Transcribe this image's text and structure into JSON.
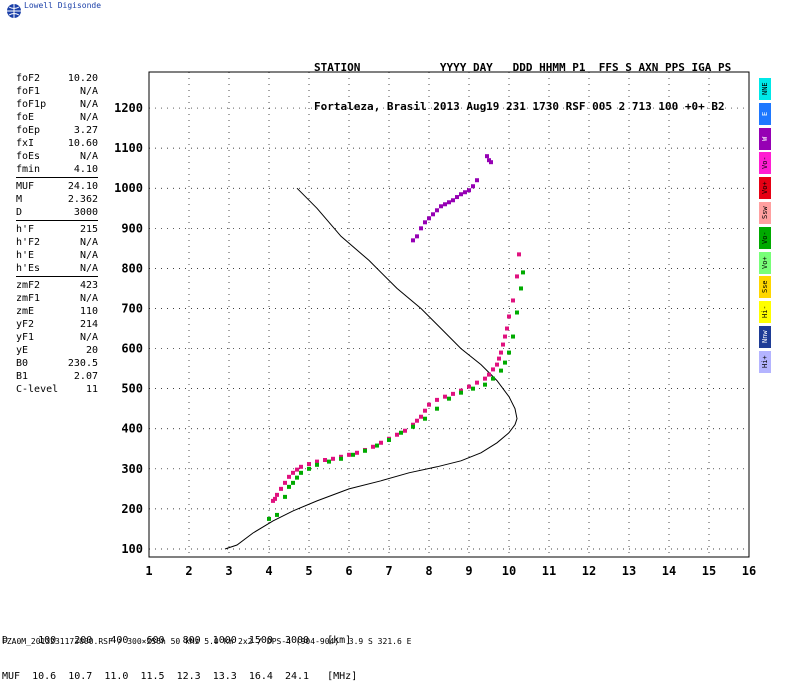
{
  "logo_text": "Lowell Digisonde",
  "header": {
    "line1": "STATION            YYYY DAY   DDD HHMM P1  FFS S AXN PPS IGA PS",
    "line2": "Fortaleza, Brasil 2013 Aug19 231 1730 RSF 005 2 713 100 +0+ B2"
  },
  "params_groups": [
    [
      [
        "foF2",
        "10.20"
      ],
      [
        "foF1",
        "N/A"
      ],
      [
        "foF1p",
        "N/A"
      ],
      [
        "foE",
        "N/A"
      ],
      [
        "foEp",
        "3.27"
      ],
      [
        "fxI",
        "10.60"
      ],
      [
        "foEs",
        "N/A"
      ],
      [
        "fmin",
        "4.10"
      ]
    ],
    [
      [
        "MUF",
        "24.10"
      ],
      [
        "M",
        "2.362"
      ],
      [
        "D",
        "3000"
      ]
    ],
    [
      [
        "h'F",
        "215"
      ],
      [
        "h'F2",
        "N/A"
      ],
      [
        "h'E",
        "N/A"
      ],
      [
        "h'Es",
        "N/A"
      ]
    ],
    [
      [
        "zmF2",
        "423"
      ],
      [
        "zmF1",
        "N/A"
      ],
      [
        "zmE",
        "110"
      ],
      [
        "yF2",
        "214"
      ],
      [
        "yF1",
        "N/A"
      ],
      [
        "yE",
        "20"
      ],
      [
        "B0",
        "230.5"
      ],
      [
        "B1",
        "2.07"
      ],
      [
        "C-level",
        "11"
      ]
    ]
  ],
  "legend": [
    {
      "label": "NNE",
      "color": "#00e8e8"
    },
    {
      "label": "E",
      "color": "#1e78ff"
    },
    {
      "label": "W",
      "color": "#9600b4"
    },
    {
      "label": "Vo-",
      "color": "#ff1ed2"
    },
    {
      "label": "Vo+",
      "color": "#e60014"
    },
    {
      "label": "Ssw",
      "color": "#ffa0a0"
    },
    {
      "label": "Vo-",
      "color": "#00aa00"
    },
    {
      "label": "Vo+",
      "color": "#78ff78"
    },
    {
      "label": "Sse",
      "color": "#ffd700"
    },
    {
      "label": "Hi-",
      "color": "#ffff00"
    },
    {
      "label": "Nnw",
      "color": "#1e3c96"
    },
    {
      "label": "Hi+",
      "color": "#b4b4ff"
    }
  ],
  "muf_table": {
    "row1": "D     100   200   400   600   800  1000  1500  3000   [km]",
    "row2": "MUF  10.6  10.7  11.0  11.5  12.3  13.3  16.4  24.1   [MHz]"
  },
  "footer": "FZA0M_2013231173000.RSF / 300×256h 50 kHz 5.0 km 2x2 / DPS-4 (904-904)  3.9 S 321.6 E",
  "colors": {
    "o_mode": "#e0117f",
    "o_mode2": "#e60014",
    "x_mode": "#00aa00",
    "x_mode2": "#78ff78",
    "other": "#9600b4",
    "profile": "#000000"
  },
  "chart_data": {
    "type": "scatter",
    "title": "",
    "xlabel": "",
    "ylabel": "",
    "xlim": [
      1,
      16
    ],
    "ylim": [
      80,
      1290
    ],
    "xticks": [
      "1",
      "2",
      "3",
      "4",
      "5",
      "6",
      "7",
      "8",
      "9",
      "10",
      "11",
      "12",
      "13",
      "14",
      "15",
      "16"
    ],
    "yticks": [
      "100",
      "200",
      "300",
      "400",
      "500",
      "600",
      "700",
      "800",
      "900",
      "1000",
      "1100",
      "1200"
    ],
    "profile": {
      "name": "",
      "x": [
        2.9,
        3.2,
        3.6,
        4.1,
        4.6,
        5.2,
        6.0,
        6.8,
        7.5,
        8.2,
        8.8,
        9.3,
        9.7,
        10.0,
        10.15,
        10.2,
        10.15,
        10.0,
        9.7,
        9.3,
        8.8,
        8.3,
        7.8,
        7.2,
        6.5,
        5.8,
        5.2,
        4.7
      ],
      "y": [
        100,
        110,
        140,
        170,
        195,
        220,
        250,
        270,
        290,
        305,
        320,
        340,
        365,
        390,
        410,
        425,
        450,
        480,
        520,
        560,
        600,
        650,
        700,
        750,
        820,
        880,
        950,
        1000
      ]
    },
    "series": [
      {
        "name": "",
        "color": "#e0117f",
        "x": [
          4.1,
          4.15,
          4.2,
          4.3,
          4.4,
          4.5,
          4.6,
          4.7,
          4.8,
          5.0,
          5.2,
          5.4,
          5.6,
          5.8,
          6.0,
          6.2,
          6.4,
          6.6,
          6.8,
          7.0,
          7.2,
          7.4,
          7.6,
          7.7,
          7.8,
          7.9,
          8.0,
          8.2,
          8.4,
          8.6,
          8.8,
          9.0,
          9.2,
          9.4,
          9.5,
          9.6,
          9.7,
          9.75,
          9.8,
          9.85,
          9.9,
          9.95,
          10.0,
          10.1,
          10.2,
          10.25
        ],
        "y": [
          220,
          225,
          235,
          250,
          265,
          280,
          290,
          298,
          305,
          312,
          318,
          322,
          325,
          330,
          335,
          340,
          347,
          355,
          365,
          375,
          385,
          395,
          410,
          420,
          430,
          445,
          460,
          472,
          480,
          487,
          495,
          505,
          515,
          525,
          535,
          548,
          560,
          575,
          590,
          610,
          630,
          650,
          680,
          720,
          780,
          835
        ]
      },
      {
        "name": "",
        "color": "#00aa00",
        "x": [
          4.0,
          4.2,
          4.4,
          4.5,
          4.6,
          4.7,
          4.8,
          5.0,
          5.2,
          5.5,
          5.8,
          6.1,
          6.4,
          6.7,
          7.0,
          7.3,
          7.6,
          7.9,
          8.2,
          8.5,
          8.8,
          9.1,
          9.4,
          9.6,
          9.8,
          9.9,
          10.0,
          10.1,
          10.2,
          10.3,
          10.35
        ],
        "y": [
          175,
          185,
          230,
          255,
          265,
          278,
          290,
          300,
          310,
          318,
          325,
          335,
          345,
          358,
          372,
          390,
          405,
          425,
          450,
          475,
          490,
          500,
          510,
          525,
          545,
          565,
          590,
          630,
          690,
          750,
          790
        ]
      },
      {
        "name": "",
        "color": "#9600b4",
        "x": [
          7.6,
          7.7,
          7.8,
          7.9,
          8.0,
          8.1,
          8.2,
          8.3,
          8.4,
          8.5,
          8.6,
          8.7,
          8.8,
          8.9,
          9.0,
          9.1,
          9.2,
          9.45,
          9.5,
          9.55
        ],
        "y": [
          870,
          880,
          900,
          915,
          925,
          935,
          945,
          955,
          960,
          965,
          970,
          978,
          985,
          990,
          995,
          1005,
          1020,
          1080,
          1070,
          1065
        ]
      }
    ]
  }
}
